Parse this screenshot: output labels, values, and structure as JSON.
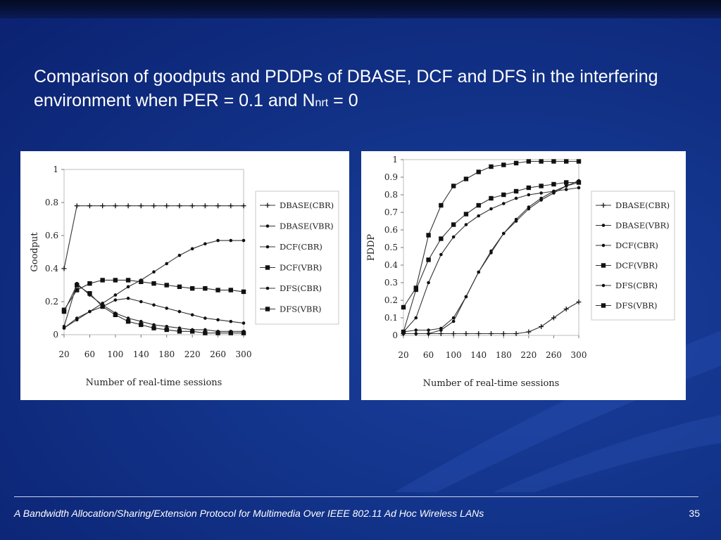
{
  "slide": {
    "title_main": "Comparison of goodputs and PDDPs of DBASE, DCF and DFS in the interfering environment when PER = 0.1 and N",
    "title_sub": "nrt",
    "title_tail": " = 0",
    "footer": "A Bandwidth Allocation/Sharing/Extension Protocol for Multimedia Over IEEE 802.11 Ad Hoc Wireless LANs",
    "page_number": "35"
  },
  "chart_data": [
    {
      "type": "line",
      "title": "",
      "xlabel": "Number of real-time sessions",
      "ylabel": "Goodput",
      "x": [
        20,
        40,
        60,
        80,
        100,
        120,
        140,
        160,
        180,
        200,
        220,
        240,
        260,
        280,
        300
      ],
      "xticks": [
        "20",
        "60",
        "100",
        "140",
        "180",
        "220",
        "260",
        "300"
      ],
      "yticks": [
        "0",
        "0.2",
        "0.4",
        "0.6",
        "0.8",
        "1"
      ],
      "xlim": [
        20,
        300
      ],
      "ylim": [
        0,
        1
      ],
      "legend_position": "right",
      "series": [
        {
          "name": "DBASE(CBR)",
          "marker": "plus",
          "values": [
            0.4,
            0.78,
            0.78,
            0.78,
            0.78,
            0.78,
            0.78,
            0.78,
            0.78,
            0.78,
            0.78,
            0.78,
            0.78,
            0.78,
            0.78
          ]
        },
        {
          "name": "DBASE(VBR)",
          "marker": "dot",
          "values": [
            0.04,
            0.09,
            0.14,
            0.19,
            0.24,
            0.29,
            0.33,
            0.38,
            0.43,
            0.48,
            0.52,
            0.55,
            0.57,
            0.57,
            0.57
          ]
        },
        {
          "name": "DCF(CBR)",
          "marker": "dot",
          "values": [
            0.04,
            0.1,
            0.14,
            0.17,
            0.21,
            0.22,
            0.2,
            0.18,
            0.16,
            0.14,
            0.12,
            0.1,
            0.09,
            0.08,
            0.07
          ]
        },
        {
          "name": "DCF(VBR)",
          "marker": "square",
          "values": [
            0.15,
            0.27,
            0.31,
            0.33,
            0.33,
            0.33,
            0.32,
            0.31,
            0.3,
            0.29,
            0.28,
            0.28,
            0.27,
            0.27,
            0.26
          ]
        },
        {
          "name": "DFS(CBR)",
          "marker": "dot",
          "values": [
            0.05,
            0.31,
            0.24,
            0.18,
            0.13,
            0.1,
            0.08,
            0.06,
            0.05,
            0.04,
            0.03,
            0.03,
            0.02,
            0.02,
            0.02
          ]
        },
        {
          "name": "DFS(VBR)",
          "marker": "square",
          "values": [
            0.14,
            0.3,
            0.25,
            0.17,
            0.12,
            0.08,
            0.06,
            0.04,
            0.03,
            0.02,
            0.02,
            0.01,
            0.01,
            0.01,
            0.01
          ]
        }
      ]
    },
    {
      "type": "line",
      "title": "",
      "xlabel": "Number of real-time sessions",
      "ylabel": "PDDP",
      "x": [
        20,
        40,
        60,
        80,
        100,
        120,
        140,
        160,
        180,
        200,
        220,
        240,
        260,
        280,
        300
      ],
      "xticks": [
        "20",
        "60",
        "100",
        "140",
        "180",
        "220",
        "260",
        "300"
      ],
      "yticks": [
        "0",
        "0.1",
        "0.2",
        "0.3",
        "0.4",
        "0.5",
        "0.6",
        "0.7",
        "0.8",
        "0.9",
        "1"
      ],
      "xlim": [
        20,
        300
      ],
      "ylim": [
        0,
        1
      ],
      "legend_position": "right",
      "series": [
        {
          "name": "DBASE(CBR)",
          "marker": "plus",
          "values": [
            0.01,
            0.01,
            0.01,
            0.01,
            0.01,
            0.01,
            0.01,
            0.01,
            0.01,
            0.01,
            0.02,
            0.05,
            0.1,
            0.15,
            0.19
          ]
        },
        {
          "name": "DBASE(VBR)",
          "marker": "dot",
          "values": [
            0.02,
            0.1,
            0.3,
            0.46,
            0.56,
            0.63,
            0.68,
            0.72,
            0.75,
            0.78,
            0.8,
            0.81,
            0.82,
            0.83,
            0.84
          ]
        },
        {
          "name": "DCF(CBR)",
          "marker": "dot",
          "values": [
            0.02,
            0.03,
            0.03,
            0.04,
            0.1,
            0.22,
            0.36,
            0.48,
            0.58,
            0.65,
            0.72,
            0.77,
            0.81,
            0.85,
            0.88
          ]
        },
        {
          "name": "DCF(VBR)",
          "marker": "square",
          "values": [
            0.02,
            0.26,
            0.43,
            0.55,
            0.63,
            0.69,
            0.74,
            0.78,
            0.8,
            0.82,
            0.84,
            0.85,
            0.86,
            0.87,
            0.87
          ]
        },
        {
          "name": "DFS(CBR)",
          "marker": "dot",
          "values": [
            0.01,
            0.01,
            0.01,
            0.03,
            0.08,
            0.22,
            0.36,
            0.47,
            0.58,
            0.66,
            0.73,
            0.78,
            0.82,
            0.85,
            0.87
          ]
        },
        {
          "name": "DFS(VBR)",
          "marker": "square",
          "values": [
            0.16,
            0.27,
            0.57,
            0.74,
            0.85,
            0.89,
            0.93,
            0.96,
            0.97,
            0.98,
            0.99,
            0.99,
            0.99,
            0.99,
            0.99
          ]
        }
      ]
    }
  ]
}
